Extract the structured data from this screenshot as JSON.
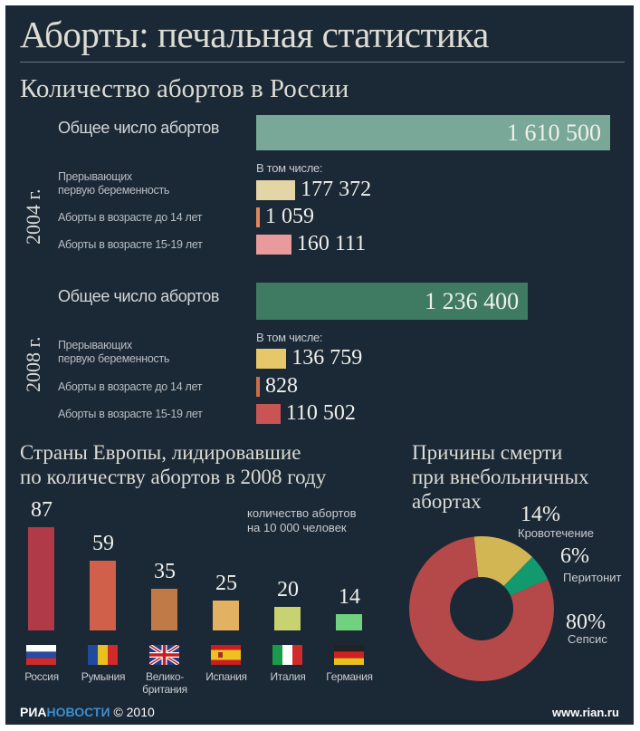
{
  "title": "Аборты: печальная статистика",
  "russia": {
    "subtitle": "Количество абортов в России",
    "including": "В том числе:",
    "years": [
      {
        "year": "2004 г.",
        "total_label": "Общее число абортов",
        "total": 1610500,
        "total_text": "1 610 500",
        "total_color": "#7aa898",
        "items": [
          {
            "label_lines": [
              "Прерывающих",
              "первую беременность"
            ],
            "value": 177372,
            "text": "177 372",
            "color": "#e3d5a6"
          },
          {
            "label_lines": [
              "Аборты в возрасте до 14 лет"
            ],
            "value": 1059,
            "text": "1 059",
            "color": "#e08860"
          },
          {
            "label_lines": [
              "Аборты в возрасте 15-19 лет"
            ],
            "value": 160111,
            "text": "160 111",
            "color": "#e89a9c"
          }
        ]
      },
      {
        "year": "2008 г.",
        "total_label": "Общее число  абортов",
        "total": 1236400,
        "total_text": "1 236 400",
        "total_color": "#3f7a62",
        "items": [
          {
            "label_lines": [
              "Прерывающих",
              "первую беременность"
            ],
            "value": 136759,
            "text": "136 759",
            "color": "#e6c86a"
          },
          {
            "label_lines": [
              "Аборты в возрасте до 14 лет"
            ],
            "value": 828,
            "text": "828",
            "color": "#c8704a"
          },
          {
            "label_lines": [
              "Аборты в возрасте 15-19 лет"
            ],
            "value": 110502,
            "text": "110 502",
            "color": "#c85454"
          }
        ]
      }
    ]
  },
  "chart_data": [
    {
      "type": "bar",
      "title": "Страны Европы, лидировавшие по количеству абортов в 2008 году",
      "title_lines": [
        "Страны Европы, лидировавшие",
        "по количеству абортов в 2008 году"
      ],
      "note_lines": [
        "количество абортов",
        "на 10 000 человек"
      ],
      "categories": [
        "Россия",
        "Румыния",
        "Велико-британия",
        "Испания",
        "Италия",
        "Германия"
      ],
      "category_lines": [
        [
          "Россия"
        ],
        [
          "Румыния"
        ],
        [
          "Велико-",
          "британия"
        ],
        [
          "Испания"
        ],
        [
          "Италия"
        ],
        [
          "Германия"
        ]
      ],
      "values": [
        87,
        59,
        35,
        25,
        20,
        14
      ],
      "colors": [
        "#b03a48",
        "#d0604a",
        "#c07a48",
        "#e2b262",
        "#c9d270",
        "#70d27e"
      ],
      "flags": [
        "russia-flag",
        "romania-flag",
        "uk-flag",
        "spain-flag",
        "italy-flag",
        "germany-flag"
      ]
    },
    {
      "type": "pie",
      "title": "Причины смерти при внебольничных абортах",
      "title_lines": [
        "Причины смерти",
        "при внебольничных",
        "абортах"
      ],
      "slices": [
        {
          "label": "Кровотечение",
          "value": 14,
          "text": "14%",
          "color": "#d2b654"
        },
        {
          "label": "Перитонит",
          "value": 6,
          "text": "6%",
          "color": "#129a6e"
        },
        {
          "label": "Сепсис",
          "value": 80,
          "text": "80%",
          "color": "#b54848"
        }
      ]
    }
  ],
  "footer": {
    "brand_a": "РИА",
    "brand_b": "НОВОСТИ",
    "copyright": "© 2010",
    "site": "www.rian.ru"
  }
}
